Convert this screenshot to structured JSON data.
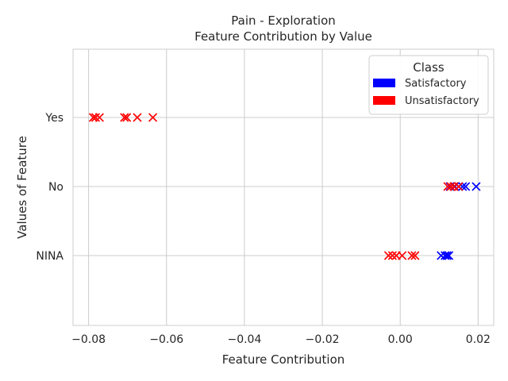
{
  "chart_data": {
    "type": "scatter",
    "title": "Pain - Exploration",
    "subtitle": "Feature Contribution by Value",
    "xlabel": "Feature Contribution",
    "ylabel": "Values of Feature",
    "xlim": [
      -0.084,
      0.024
    ],
    "x_ticks": [
      -0.08,
      -0.06,
      -0.04,
      -0.02,
      0.0,
      0.02
    ],
    "x_tick_labels": [
      "−0.08",
      "−0.06",
      "−0.04",
      "−0.02",
      "0.00",
      "0.02"
    ],
    "categories": [
      "Yes",
      "No",
      "NINA"
    ],
    "grid": true,
    "marker": "x",
    "legend": {
      "title": "Class",
      "position": "top-right",
      "entries": [
        {
          "label": "Satisfactory",
          "color": "#0000ff"
        },
        {
          "label": "Unsatisfactory",
          "color": "#ff0000"
        }
      ]
    },
    "series": [
      {
        "name": "Satisfactory",
        "color": "#0000ff",
        "points": [
          {
            "category": "No",
            "x": 0.0128
          },
          {
            "category": "No",
            "x": 0.014
          },
          {
            "category": "No",
            "x": 0.015
          },
          {
            "category": "No",
            "x": 0.016
          },
          {
            "category": "No",
            "x": 0.0168
          },
          {
            "category": "No",
            "x": 0.0195
          },
          {
            "category": "NINA",
            "x": 0.0105
          },
          {
            "category": "NINA",
            "x": 0.0115
          },
          {
            "category": "NINA",
            "x": 0.012
          },
          {
            "category": "NINA",
            "x": 0.0125
          }
        ]
      },
      {
        "name": "Unsatisfactory",
        "color": "#ff0000",
        "points": [
          {
            "category": "Yes",
            "x": -0.0788
          },
          {
            "category": "Yes",
            "x": -0.0782
          },
          {
            "category": "Yes",
            "x": -0.0772
          },
          {
            "category": "Yes",
            "x": -0.0708
          },
          {
            "category": "Yes",
            "x": -0.0702
          },
          {
            "category": "Yes",
            "x": -0.0675
          },
          {
            "category": "Yes",
            "x": -0.0635
          },
          {
            "category": "No",
            "x": 0.0122
          },
          {
            "category": "No",
            "x": 0.013
          },
          {
            "category": "No",
            "x": 0.0138
          },
          {
            "category": "No",
            "x": 0.015
          },
          {
            "category": "NINA",
            "x": -0.003
          },
          {
            "category": "NINA",
            "x": -0.002
          },
          {
            "category": "NINA",
            "x": -0.001
          },
          {
            "category": "NINA",
            "x": 0.0005
          },
          {
            "category": "NINA",
            "x": 0.003
          },
          {
            "category": "NINA",
            "x": 0.0038
          }
        ]
      }
    ]
  }
}
